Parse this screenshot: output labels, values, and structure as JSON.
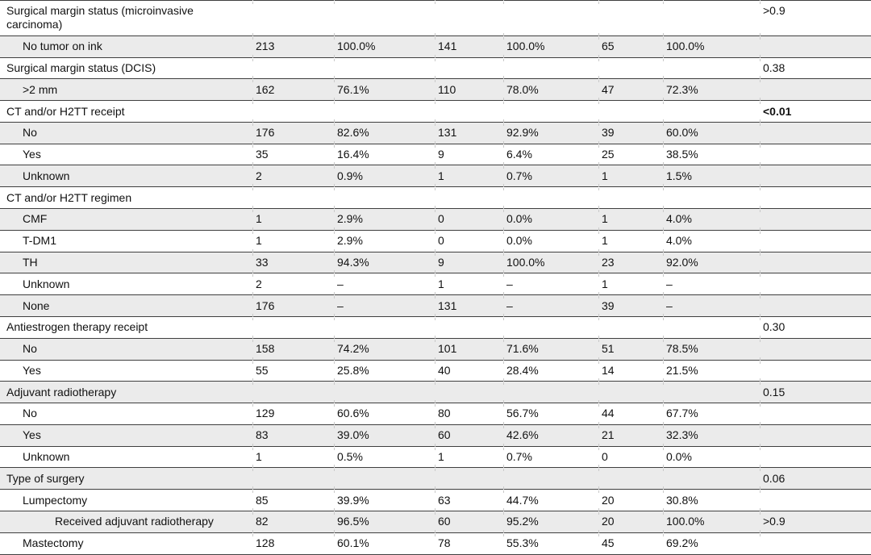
{
  "colors": {
    "page_background": "#ffffff",
    "stripe_background": "#ebebeb",
    "rule": "#3f3f3f",
    "tick": "#c9c9c9",
    "text": "#111111"
  },
  "table": {
    "rows": [
      {
        "label": "Surgical margin status (microinvasive carcinoma)",
        "indent": 0,
        "cells": [
          "",
          "",
          "",
          "",
          "",
          ""
        ],
        "p": ">0.9"
      },
      {
        "label": "No tumor on ink",
        "indent": 1,
        "cells": [
          "213",
          "100.0%",
          "141",
          "100.0%",
          "65",
          "100.0%"
        ],
        "p": ""
      },
      {
        "label": "Surgical margin status (DCIS)",
        "indent": 0,
        "cells": [
          "",
          "",
          "",
          "",
          "",
          ""
        ],
        "p": "0.38"
      },
      {
        "label": ">2 mm",
        "indent": 1,
        "cells": [
          "162",
          "76.1%",
          "110",
          "78.0%",
          "47",
          "72.3%"
        ],
        "p": ""
      },
      {
        "label": "CT and/or H2TT receipt",
        "indent": 0,
        "cells": [
          "",
          "",
          "",
          "",
          "",
          ""
        ],
        "p": "<0.01",
        "p_bold": true
      },
      {
        "label": "No",
        "indent": 1,
        "cells": [
          "176",
          "82.6%",
          "131",
          "92.9%",
          "39",
          "60.0%"
        ],
        "p": ""
      },
      {
        "label": "Yes",
        "indent": 1,
        "cells": [
          "35",
          "16.4%",
          "9",
          "6.4%",
          "25",
          "38.5%"
        ],
        "p": ""
      },
      {
        "label": "Unknown",
        "indent": 1,
        "cells": [
          "2",
          "0.9%",
          "1",
          "0.7%",
          "1",
          "1.5%"
        ],
        "p": ""
      },
      {
        "label": "CT and/or H2TT regimen",
        "indent": 0,
        "cells": [
          "",
          "",
          "",
          "",
          "",
          ""
        ],
        "p": ""
      },
      {
        "label": "CMF",
        "indent": 1,
        "cells": [
          "1",
          "2.9%",
          "0",
          "0.0%",
          "1",
          "4.0%"
        ],
        "p": ""
      },
      {
        "label": "T-DM1",
        "indent": 1,
        "cells": [
          "1",
          "2.9%",
          "0",
          "0.0%",
          "1",
          "4.0%"
        ],
        "p": ""
      },
      {
        "label": "TH",
        "indent": 1,
        "cells": [
          "33",
          "94.3%",
          "9",
          "100.0%",
          "23",
          "92.0%"
        ],
        "p": ""
      },
      {
        "label": "Unknown",
        "indent": 1,
        "cells": [
          "2",
          "–",
          "1",
          "–",
          "1",
          "–"
        ],
        "p": ""
      },
      {
        "label": "None",
        "indent": 1,
        "cells": [
          "176",
          "–",
          "131",
          "–",
          "39",
          "–"
        ],
        "p": ""
      },
      {
        "label": "Antiestrogen therapy receipt",
        "indent": 0,
        "cells": [
          "",
          "",
          "",
          "",
          "",
          ""
        ],
        "p": "0.30"
      },
      {
        "label": "No",
        "indent": 1,
        "cells": [
          "158",
          "74.2%",
          "101",
          "71.6%",
          "51",
          "78.5%"
        ],
        "p": ""
      },
      {
        "label": "Yes",
        "indent": 1,
        "cells": [
          "55",
          "25.8%",
          "40",
          "28.4%",
          "14",
          "21.5%"
        ],
        "p": ""
      },
      {
        "label": "Adjuvant radiotherapy",
        "indent": 0,
        "cells": [
          "",
          "",
          "",
          "",
          "",
          ""
        ],
        "p": "0.15"
      },
      {
        "label": "No",
        "indent": 1,
        "cells": [
          "129",
          "60.6%",
          "80",
          "56.7%",
          "44",
          "67.7%"
        ],
        "p": ""
      },
      {
        "label": "Yes",
        "indent": 1,
        "cells": [
          "83",
          "39.0%",
          "60",
          "42.6%",
          "21",
          "32.3%"
        ],
        "p": ""
      },
      {
        "label": "Unknown",
        "indent": 1,
        "cells": [
          "1",
          "0.5%",
          "1",
          "0.7%",
          "0",
          "0.0%"
        ],
        "p": ""
      },
      {
        "label": "Type of surgery",
        "indent": 0,
        "cells": [
          "",
          "",
          "",
          "",
          "",
          ""
        ],
        "p": "0.06"
      },
      {
        "label": "Lumpectomy",
        "indent": 1,
        "cells": [
          "85",
          "39.9%",
          "63",
          "44.7%",
          "20",
          "30.8%"
        ],
        "p": ""
      },
      {
        "label": "Received adjuvant radiotherapy",
        "indent": 2,
        "cells": [
          "82",
          "96.5%",
          "60",
          "95.2%",
          "20",
          "100.0%"
        ],
        "p": ">0.9"
      },
      {
        "label": "Mastectomy",
        "indent": 1,
        "cells": [
          "128",
          "60.1%",
          "78",
          "55.3%",
          "45",
          "69.2%"
        ],
        "p": ""
      }
    ]
  }
}
